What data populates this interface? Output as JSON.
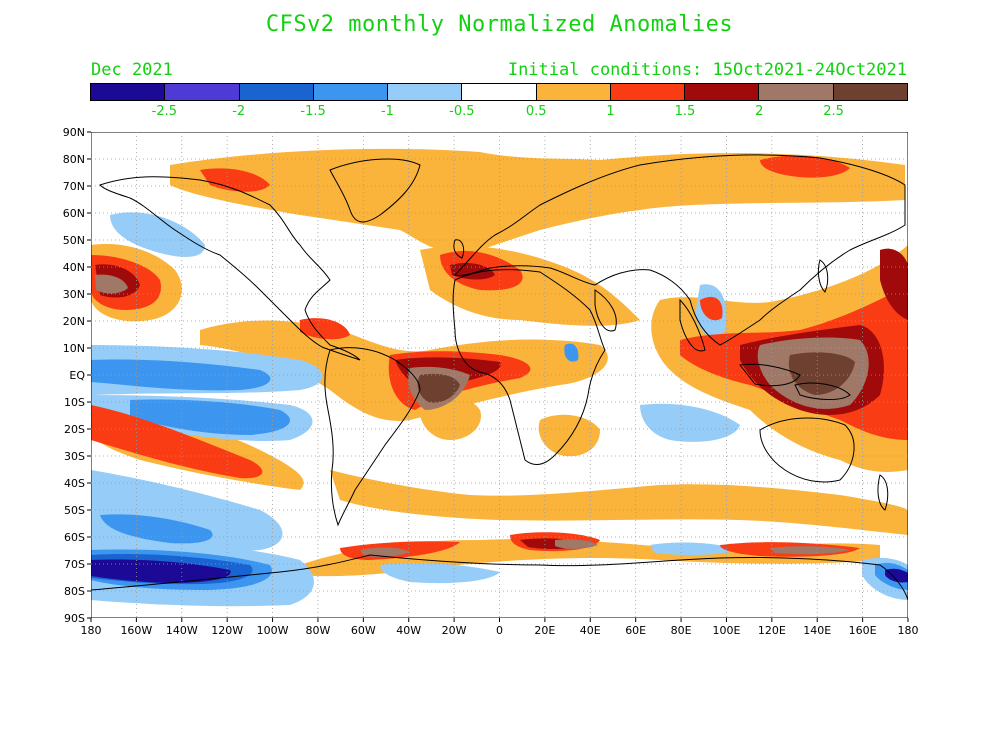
{
  "title": "CFSv2 monthly Normalized Anomalies",
  "subtitle_left": "Dec 2021",
  "subtitle_right": "Initial conditions: 15Oct2021-24Oct2021",
  "colorbar": {
    "colors": [
      "#1c0a96",
      "#4f3ad6",
      "#1a64d2",
      "#3c96f0",
      "#96ccf8",
      "#ffffff",
      "#fab43c",
      "#fa3c14",
      "#a00a0a",
      "#a07868",
      "#6e4030"
    ],
    "labels": [
      "-2.5",
      "-2",
      "-1.5",
      "-1",
      "-0.5",
      "0.5",
      "1",
      "1.5",
      "2",
      "2.5"
    ]
  },
  "axes": {
    "lat_labels": [
      "90N",
      "80N",
      "70N",
      "60N",
      "50N",
      "40N",
      "30N",
      "20N",
      "10N",
      "EQ",
      "10S",
      "20S",
      "30S",
      "40S",
      "50S",
      "60S",
      "70S",
      "80S",
      "90S"
    ],
    "lon_labels": [
      "180",
      "160W",
      "140W",
      "120W",
      "100W",
      "80W",
      "60W",
      "40W",
      "20W",
      "0",
      "20E",
      "40E",
      "60E",
      "80E",
      "100E",
      "120E",
      "140E",
      "160E",
      "180"
    ]
  }
}
